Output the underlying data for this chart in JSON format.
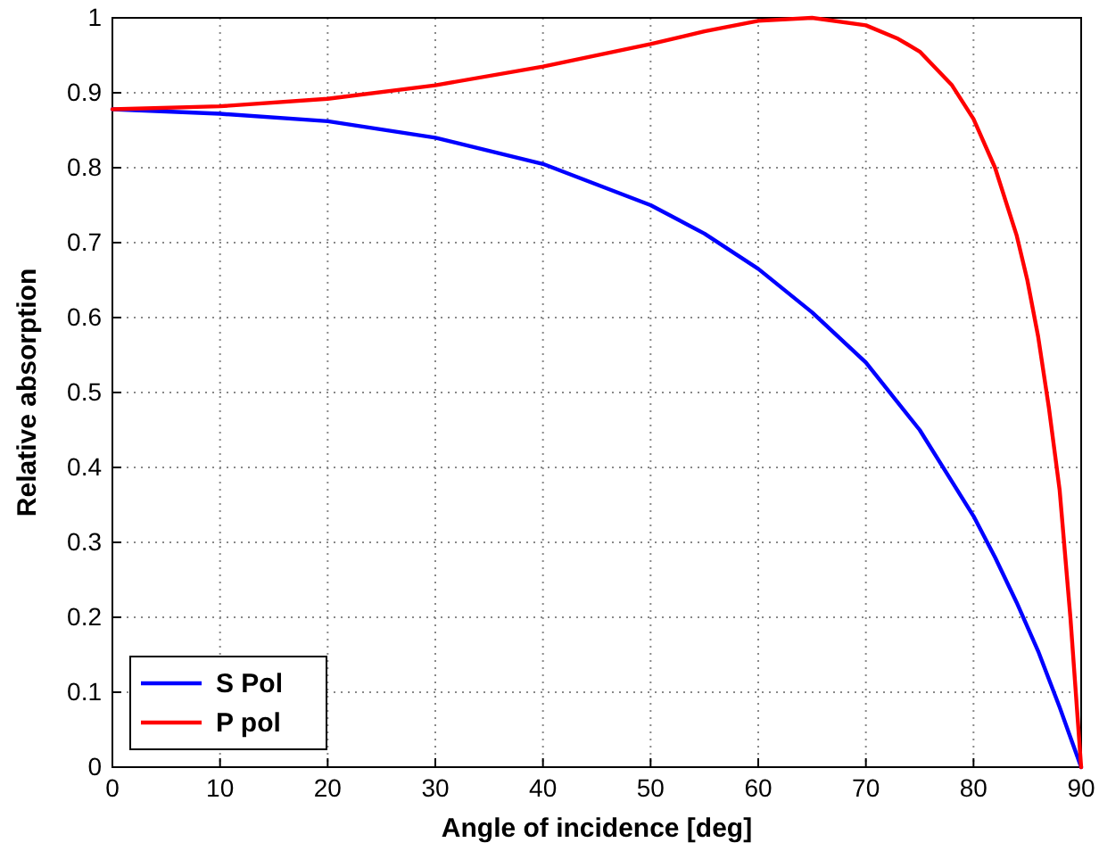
{
  "chart_data": {
    "type": "line",
    "xlabel": "Angle of incidence [deg]",
    "ylabel": "Relative absorption",
    "xlim": [
      0,
      90
    ],
    "ylim": [
      0,
      1
    ],
    "xticks": [
      0,
      10,
      20,
      30,
      40,
      50,
      60,
      70,
      80,
      90
    ],
    "yticks": [
      0,
      0.1,
      0.2,
      0.3,
      0.4,
      0.5,
      0.6,
      0.7,
      0.8,
      0.9,
      1
    ],
    "grid": true,
    "legend": "bottom left",
    "line_style": "solid",
    "marker": "none",
    "series": [
      {
        "name": "S Pol",
        "color": "#0000ff",
        "x": [
          0,
          10,
          20,
          30,
          40,
          50,
          55,
          60,
          65,
          70,
          75,
          80,
          82,
          84,
          86,
          88,
          89,
          90
        ],
        "values": [
          0.878,
          0.872,
          0.862,
          0.84,
          0.805,
          0.75,
          0.712,
          0.665,
          0.607,
          0.54,
          0.45,
          0.335,
          0.28,
          0.22,
          0.155,
          0.08,
          0.04,
          0
        ]
      },
      {
        "name": "P pol",
        "color": "#ff0000",
        "x": [
          0,
          10,
          20,
          30,
          40,
          50,
          55,
          60,
          65,
          70,
          73,
          75,
          78,
          80,
          82,
          84,
          85,
          86,
          87,
          88,
          89,
          90
        ],
        "values": [
          0.878,
          0.882,
          0.892,
          0.91,
          0.935,
          0.965,
          0.982,
          0.996,
          1.0,
          0.99,
          0.972,
          0.955,
          0.91,
          0.865,
          0.8,
          0.71,
          0.65,
          0.575,
          0.48,
          0.37,
          0.2,
          0
        ]
      }
    ]
  }
}
